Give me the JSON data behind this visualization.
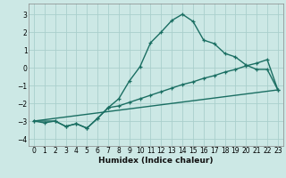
{
  "xlabel": "Humidex (Indice chaleur)",
  "bg_color": "#cce8e5",
  "grid_color": "#aacfcc",
  "line_color": "#1a6e62",
  "xlim": [
    -0.5,
    23.5
  ],
  "ylim": [
    -4.4,
    3.6
  ],
  "xticks": [
    0,
    1,
    2,
    3,
    4,
    5,
    6,
    7,
    8,
    9,
    10,
    11,
    12,
    13,
    14,
    15,
    16,
    17,
    18,
    19,
    20,
    21,
    22,
    23
  ],
  "yticks": [
    -4,
    -3,
    -2,
    -1,
    0,
    1,
    2,
    3
  ],
  "line1_x": [
    0,
    1,
    2,
    3,
    4,
    5,
    6,
    7,
    8,
    9,
    10,
    11,
    12,
    13,
    14,
    15,
    16,
    17,
    18,
    19,
    20,
    21,
    22,
    23
  ],
  "line1_y": [
    -3.0,
    -3.1,
    -3.0,
    -3.3,
    -3.15,
    -3.4,
    -2.85,
    -2.25,
    -1.75,
    -0.75,
    0.05,
    1.4,
    2.0,
    2.65,
    3.0,
    2.6,
    1.55,
    1.35,
    0.8,
    0.6,
    0.15,
    -0.1,
    -0.1,
    -1.25
  ],
  "line2_x": [
    0,
    2,
    3,
    4,
    5,
    6,
    7,
    8,
    9,
    10,
    11,
    12,
    13,
    14,
    15,
    16,
    17,
    18,
    19,
    20,
    21,
    22,
    23
  ],
  "line2_y": [
    -3.0,
    -3.0,
    -3.3,
    -3.15,
    -3.4,
    -2.85,
    -2.25,
    -2.15,
    -1.95,
    -1.75,
    -1.55,
    -1.35,
    -1.15,
    -0.95,
    -0.8,
    -0.6,
    -0.45,
    -0.25,
    -0.1,
    0.1,
    0.25,
    0.45,
    -1.25
  ],
  "line3_x": [
    0,
    23
  ],
  "line3_y": [
    -3.0,
    -1.25
  ]
}
